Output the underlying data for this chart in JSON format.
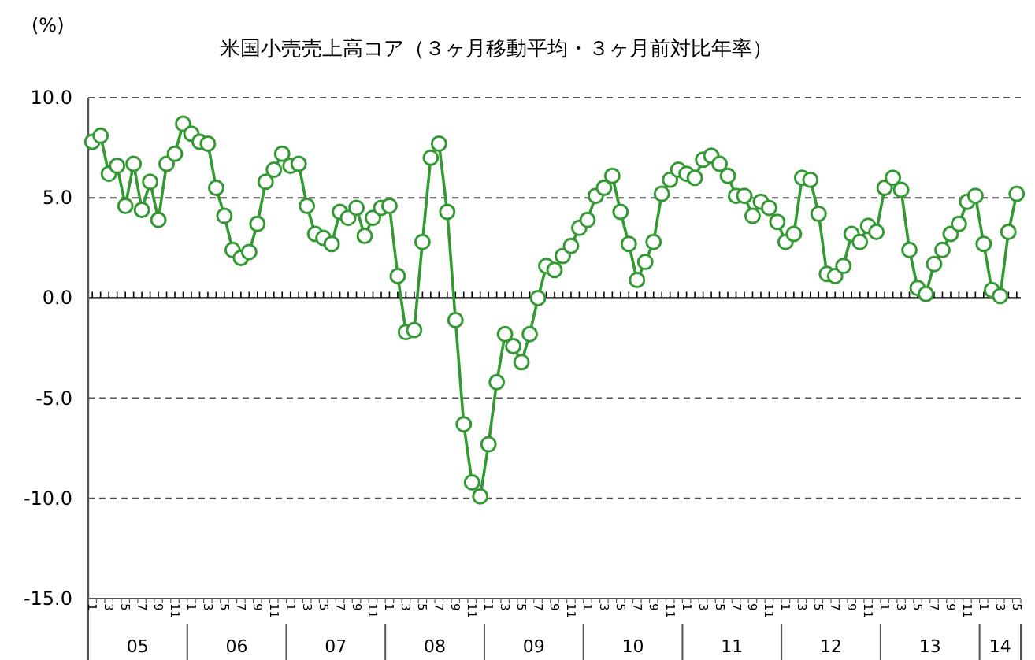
{
  "chart_data": {
    "type": "line",
    "title": "米国小売売上高コア（３ヶ月移動平均・３ヶ月前対比年率）",
    "ylabel": "(%)",
    "categories": [
      "1",
      null,
      "3",
      null,
      "5",
      null,
      "7",
      null,
      "9",
      null,
      "11",
      null,
      "1",
      null,
      "3",
      null,
      "5",
      null,
      "7",
      null,
      "9",
      null,
      "11",
      null,
      "1",
      null,
      "3",
      null,
      "5",
      null,
      "7",
      null,
      "9",
      null,
      "11",
      null,
      "1",
      null,
      "3",
      null,
      "5",
      null,
      "7",
      null,
      "9",
      null,
      "11",
      null,
      "1",
      null,
      "3",
      null,
      "5",
      null,
      "7",
      null,
      "9",
      null,
      "11",
      null,
      "1",
      null,
      "3",
      null,
      "5",
      null,
      "7",
      null,
      "9",
      null,
      "11",
      null,
      "1",
      null,
      "3",
      null,
      "5",
      null,
      "7",
      null,
      "9",
      null,
      "11",
      null,
      "1",
      null,
      "3",
      null,
      "5",
      null,
      "7",
      null,
      "9",
      null,
      "11",
      null,
      "1",
      null,
      "3",
      null,
      "5",
      null,
      "7",
      null,
      "9",
      null,
      "11",
      null,
      "1",
      null,
      "3",
      null,
      "5"
    ],
    "series": [
      {
        "color": "#339933",
        "values": [
          7.8,
          8.1,
          6.2,
          6.6,
          4.6,
          6.7,
          4.4,
          5.8,
          3.9,
          6.7,
          7.2,
          8.7,
          8.2,
          7.8,
          7.7,
          5.5,
          4.1,
          2.4,
          2.0,
          2.3,
          3.7,
          5.8,
          6.4,
          7.2,
          6.6,
          6.7,
          4.6,
          3.2,
          3.0,
          2.7,
          4.3,
          4.0,
          4.5,
          3.1,
          4.0,
          4.5,
          4.6,
          1.1,
          -1.7,
          -1.6,
          2.8,
          7.0,
          7.7,
          4.3,
          -1.1,
          -6.3,
          -9.2,
          -9.9,
          -7.3,
          -4.2,
          -1.8,
          -2.4,
          -3.2,
          -1.8,
          0.0,
          1.6,
          1.4,
          2.1,
          2.6,
          3.5,
          3.9,
          5.1,
          5.5,
          6.1,
          4.3,
          2.7,
          0.9,
          1.8,
          2.8,
          5.2,
          5.9,
          6.4,
          6.2,
          6.0,
          6.9,
          7.1,
          6.7,
          6.1,
          5.1,
          5.1,
          4.1,
          4.8,
          4.5,
          3.8,
          2.8,
          3.2,
          6.0,
          5.9,
          4.2,
          1.2,
          1.1,
          1.6,
          3.2,
          2.8,
          3.6,
          3.3,
          5.5,
          6.0,
          5.4,
          2.4,
          0.5,
          0.2,
          1.7,
          2.4,
          3.2,
          3.7,
          4.8,
          5.1,
          2.7,
          0.4,
          0.1,
          3.3,
          5.2
        ]
      }
    ],
    "ylim": [
      -15,
      10
    ],
    "yticks": [
      {
        "value": 10,
        "label": "10.0"
      },
      {
        "value": 5,
        "label": "5.0"
      },
      {
        "value": 0,
        "label": "0.0"
      },
      {
        "value": -5,
        "label": "-5.0"
      },
      {
        "value": -10,
        "label": "-10.0"
      },
      {
        "value": -15,
        "label": "-15.0"
      }
    ],
    "annotations": [
      "05",
      "06",
      "07",
      "08",
      "09",
      "10",
      "11",
      "12",
      "13",
      "14"
    ],
    "grid": "y",
    "marker": "circle",
    "line_style": "solid"
  }
}
